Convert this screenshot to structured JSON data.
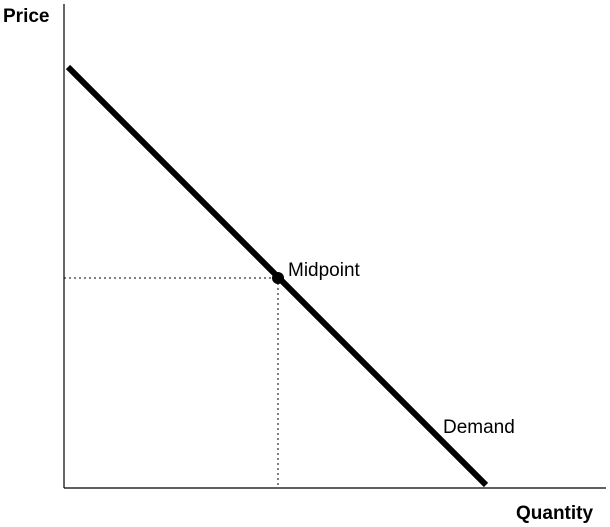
{
  "diagram": {
    "y_axis_label": "Price",
    "x_axis_label": "Quantity",
    "curve_label": "Demand",
    "point_label": "Midpoint",
    "line_color": "#000000",
    "guide_style": "dotted"
  }
}
